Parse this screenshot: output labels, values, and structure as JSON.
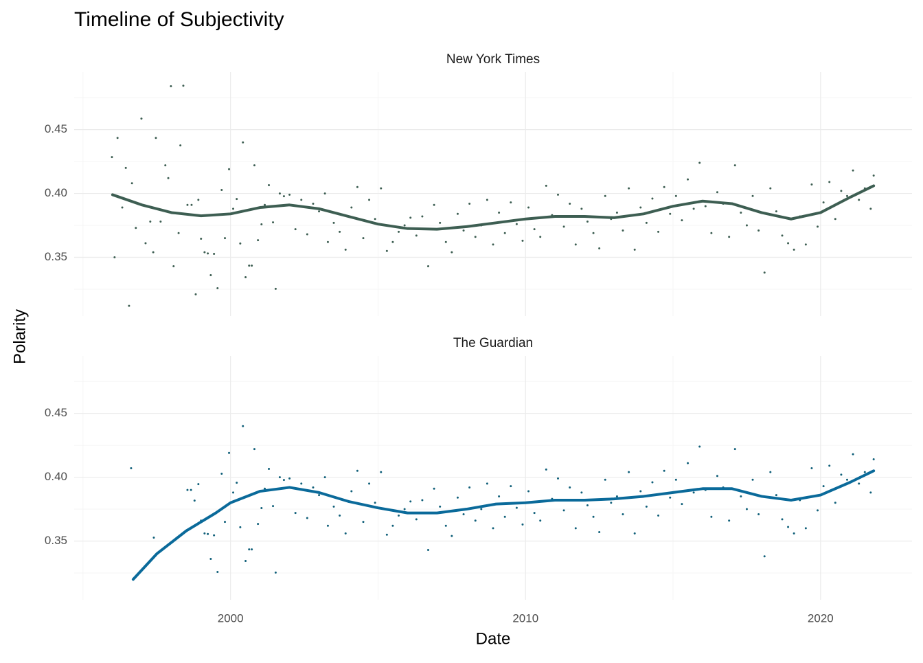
{
  "title": "Timeline of Subjectivity",
  "xlabel": "Date",
  "ylabel": "Polarity",
  "chart_data": [
    {
      "type": "scatter",
      "facet": "New York Times",
      "color": "#3d5e52",
      "xlim": [
        1994.7,
        2023.1
      ],
      "ylim": [
        0.304,
        0.495
      ],
      "xticks": [
        2000,
        2010,
        2020
      ],
      "x_tick_labels": false,
      "minor_xticks": [
        1995,
        2005,
        2015
      ],
      "yticks": [
        0.35,
        {
          "value": 0.4,
          "label": "0.40"
        },
        0.45
      ],
      "minor_yticks": [
        0.325,
        0.375,
        0.425,
        0.475
      ],
      "grid": true,
      "x": [
        1995.98,
        1996.07,
        1996.17,
        1996.33,
        1996.45,
        1996.56,
        1996.66,
        1996.79,
        1996.98,
        1997.12,
        1997.28,
        1997.38,
        1997.47,
        1997.63,
        1997.79,
        1997.89,
        1997.98,
        1998.07,
        1998.24,
        1998.3,
        1998.4,
        1998.54,
        1998.68,
        1998.82,
        1998.91,
        1999.0,
        1999.12,
        1999.23,
        1999.33,
        1999.44,
        1999.56,
        1999.7,
        1999.81,
        1999.95,
        2000.09,
        2000.21,
        2000.33,
        2000.42,
        2000.51,
        2000.63,
        2000.72,
        2000.81,
        2000.93,
        2001.05,
        2001.16,
        2001.3,
        2001.44,
        2001.53,
        2001.67,
        2001.81,
        2002.0,
        2002.2,
        2002.4,
        2002.6,
        2002.8,
        2003.0,
        2003.2,
        2003.3,
        2003.5,
        2003.7,
        2003.9,
        2004.1,
        2004.3,
        2004.5,
        2004.7,
        2004.9,
        2005.1,
        2005.3,
        2005.5,
        2005.7,
        2005.9,
        2006.1,
        2006.3,
        2006.5,
        2006.7,
        2006.9,
        2007.1,
        2007.3,
        2007.5,
        2007.7,
        2007.9,
        2008.1,
        2008.3,
        2008.5,
        2008.7,
        2008.9,
        2009.1,
        2009.3,
        2009.5,
        2009.7,
        2009.9,
        2010.1,
        2010.3,
        2010.5,
        2010.7,
        2010.9,
        2011.1,
        2011.3,
        2011.5,
        2011.7,
        2011.9,
        2012.1,
        2012.3,
        2012.5,
        2012.7,
        2012.9,
        2013.1,
        2013.3,
        2013.5,
        2013.7,
        2013.9,
        2014.1,
        2014.3,
        2014.5,
        2014.7,
        2014.9,
        2015.1,
        2015.3,
        2015.5,
        2015.7,
        2015.9,
        2016.1,
        2016.3,
        2016.5,
        2016.7,
        2016.9,
        2017.1,
        2017.3,
        2017.5,
        2017.7,
        2017.9,
        2018.1,
        2018.3,
        2018.5,
        2018.7,
        2018.9,
        2019.1,
        2019.3,
        2019.5,
        2019.7,
        2019.9,
        2020.1,
        2020.3,
        2020.5,
        2020.7,
        2020.9,
        2021.1,
        2021.3,
        2021.5,
        2021.7,
        2021.8
      ],
      "values": [
        0.4285,
        0.35,
        0.4435,
        0.389,
        0.42,
        0.312,
        0.408,
        0.373,
        0.4586,
        0.361,
        0.378,
        0.354,
        0.4435,
        0.378,
        0.422,
        0.412,
        0.484,
        0.343,
        0.369,
        0.4376,
        0.4844,
        0.391,
        0.391,
        0.321,
        0.395,
        0.3645,
        0.354,
        0.353,
        0.336,
        0.3527,
        0.3258,
        0.4027,
        0.365,
        0.419,
        0.388,
        0.3957,
        0.3608,
        0.44,
        0.3344,
        0.3435,
        0.3435,
        0.422,
        0.3634,
        0.3758,
        0.391,
        0.4065,
        0.3774,
        0.3253,
        0.4,
        0.3978,
        0.399,
        0.372,
        0.395,
        0.368,
        0.392,
        0.386,
        0.4,
        0.362,
        0.377,
        0.37,
        0.356,
        0.389,
        0.405,
        0.365,
        0.395,
        0.38,
        0.404,
        0.355,
        0.362,
        0.37,
        0.375,
        0.381,
        0.367,
        0.382,
        0.343,
        0.391,
        0.377,
        0.362,
        0.354,
        0.384,
        0.371,
        0.392,
        0.366,
        0.375,
        0.395,
        0.36,
        0.385,
        0.369,
        0.393,
        0.376,
        0.363,
        0.389,
        0.372,
        0.366,
        0.406,
        0.383,
        0.399,
        0.374,
        0.392,
        0.36,
        0.388,
        0.378,
        0.369,
        0.357,
        0.398,
        0.38,
        0.385,
        0.371,
        0.404,
        0.356,
        0.389,
        0.377,
        0.396,
        0.37,
        0.405,
        0.384,
        0.398,
        0.379,
        0.411,
        0.388,
        0.424,
        0.39,
        0.369,
        0.401,
        0.392,
        0.366,
        0.422,
        0.385,
        0.375,
        0.398,
        0.371,
        0.338,
        0.404,
        0.386,
        0.367,
        0.361,
        0.356,
        0.382,
        0.36,
        0.407,
        0.374,
        0.393,
        0.409,
        0.38,
        0.402,
        0.398,
        0.418,
        0.395,
        0.404,
        0.388,
        0.414
      ],
      "trend": {
        "color": "#3d5e52",
        "x": [
          1996,
          1997,
          1998,
          1999,
          2000,
          2001,
          2002,
          2003,
          2004,
          2005,
          2006,
          2007,
          2008,
          2009,
          2010,
          2011,
          2012,
          2013,
          2014,
          2015,
          2016,
          2017,
          2018,
          2019,
          2020,
          2021,
          2021.8
        ],
        "values": [
          0.399,
          0.391,
          0.385,
          0.3825,
          0.384,
          0.389,
          0.391,
          0.388,
          0.382,
          0.376,
          0.3725,
          0.372,
          0.374,
          0.377,
          0.38,
          0.382,
          0.382,
          0.381,
          0.384,
          0.39,
          0.394,
          0.392,
          0.385,
          0.38,
          0.385,
          0.397,
          0.406
        ]
      }
    },
    {
      "type": "scatter",
      "facet": "The Guardian",
      "color": "#11607a",
      "xlim": [
        1994.7,
        2023.1
      ],
      "ylim": [
        0.304,
        0.495
      ],
      "xticks": [
        2000,
        2010,
        2020
      ],
      "x_tick_labels": true,
      "minor_xticks": [
        1995,
        2005,
        2015
      ],
      "yticks": [
        0.35,
        {
          "value": 0.4,
          "label": "0.40"
        },
        0.45
      ],
      "minor_yticks": [
        0.325,
        0.375,
        0.425,
        0.475
      ],
      "grid": true,
      "x": [
        1996.63,
        1997.4,
        1998.54,
        1998.66,
        1998.78,
        1998.91,
        1999.0,
        1999.12,
        1999.23,
        1999.33,
        1999.44,
        1999.56,
        1999.7,
        1999.81,
        1999.95,
        2000.09,
        2000.21,
        2000.33,
        2000.42,
        2000.51,
        2000.63,
        2000.72,
        2000.81,
        2000.93,
        2001.05,
        2001.16,
        2001.3,
        2001.44,
        2001.53,
        2001.67,
        2001.81,
        2002.0,
        2002.2,
        2002.4,
        2002.6,
        2002.8,
        2003.0,
        2003.2,
        2003.3,
        2003.5,
        2003.7,
        2003.9,
        2004.1,
        2004.3,
        2004.5,
        2004.7,
        2004.9,
        2005.1,
        2005.3,
        2005.5,
        2005.7,
        2005.9,
        2006.1,
        2006.3,
        2006.5,
        2006.7,
        2006.9,
        2007.1,
        2007.3,
        2007.5,
        2007.7,
        2007.9,
        2008.1,
        2008.3,
        2008.5,
        2008.7,
        2008.9,
        2009.1,
        2009.3,
        2009.5,
        2009.7,
        2009.9,
        2010.1,
        2010.3,
        2010.5,
        2010.7,
        2010.9,
        2011.1,
        2011.3,
        2011.5,
        2011.7,
        2011.9,
        2012.1,
        2012.3,
        2012.5,
        2012.7,
        2012.9,
        2013.1,
        2013.3,
        2013.5,
        2013.7,
        2013.9,
        2014.1,
        2014.3,
        2014.5,
        2014.7,
        2014.9,
        2015.1,
        2015.3,
        2015.5,
        2015.7,
        2015.9,
        2016.1,
        2016.3,
        2016.5,
        2016.7,
        2016.9,
        2017.1,
        2017.3,
        2017.5,
        2017.7,
        2017.9,
        2018.1,
        2018.3,
        2018.5,
        2018.7,
        2018.9,
        2019.1,
        2019.3,
        2019.5,
        2019.7,
        2019.9,
        2020.1,
        2020.3,
        2020.5,
        2020.7,
        2020.9,
        2021.1,
        2021.3,
        2021.5,
        2021.7,
        2021.8
      ],
      "values": [
        0.407,
        0.3527,
        0.39,
        0.39,
        0.3817,
        0.3946,
        0.366,
        0.356,
        0.3555,
        0.336,
        0.3545,
        0.3258,
        0.4027,
        0.365,
        0.419,
        0.388,
        0.3957,
        0.3608,
        0.44,
        0.3344,
        0.3435,
        0.3435,
        0.422,
        0.3634,
        0.3758,
        0.391,
        0.4065,
        0.3774,
        0.3253,
        0.4,
        0.3978,
        0.399,
        0.372,
        0.395,
        0.368,
        0.392,
        0.386,
        0.4,
        0.362,
        0.377,
        0.37,
        0.356,
        0.389,
        0.405,
        0.365,
        0.395,
        0.38,
        0.404,
        0.355,
        0.362,
        0.37,
        0.375,
        0.381,
        0.367,
        0.382,
        0.343,
        0.391,
        0.377,
        0.362,
        0.354,
        0.384,
        0.371,
        0.392,
        0.366,
        0.375,
        0.395,
        0.36,
        0.385,
        0.369,
        0.393,
        0.376,
        0.363,
        0.389,
        0.372,
        0.366,
        0.406,
        0.383,
        0.399,
        0.374,
        0.392,
        0.36,
        0.388,
        0.378,
        0.369,
        0.357,
        0.398,
        0.38,
        0.385,
        0.371,
        0.404,
        0.356,
        0.389,
        0.377,
        0.396,
        0.37,
        0.405,
        0.384,
        0.398,
        0.379,
        0.411,
        0.388,
        0.424,
        0.39,
        0.369,
        0.401,
        0.392,
        0.366,
        0.422,
        0.385,
        0.375,
        0.398,
        0.371,
        0.338,
        0.404,
        0.386,
        0.367,
        0.361,
        0.356,
        0.382,
        0.36,
        0.407,
        0.374,
        0.393,
        0.409,
        0.38,
        0.402,
        0.398,
        0.418,
        0.395,
        0.404,
        0.388,
        0.414
      ],
      "trend": {
        "color": "#0a6a9a",
        "x": [
          1996.7,
          1997.5,
          1998.5,
          1999.5,
          2000,
          2001,
          2002,
          2003,
          2004,
          2005,
          2006,
          2007,
          2008,
          2009,
          2010,
          2011,
          2012,
          2013,
          2014,
          2015,
          2016,
          2017,
          2018,
          2019,
          2020,
          2021,
          2021.8
        ],
        "values": [
          0.32,
          0.34,
          0.358,
          0.372,
          0.38,
          0.389,
          0.392,
          0.388,
          0.381,
          0.376,
          0.372,
          0.372,
          0.375,
          0.379,
          0.38,
          0.382,
          0.382,
          0.383,
          0.385,
          0.388,
          0.391,
          0.391,
          0.385,
          0.382,
          0.386,
          0.396,
          0.405
        ]
      }
    }
  ]
}
